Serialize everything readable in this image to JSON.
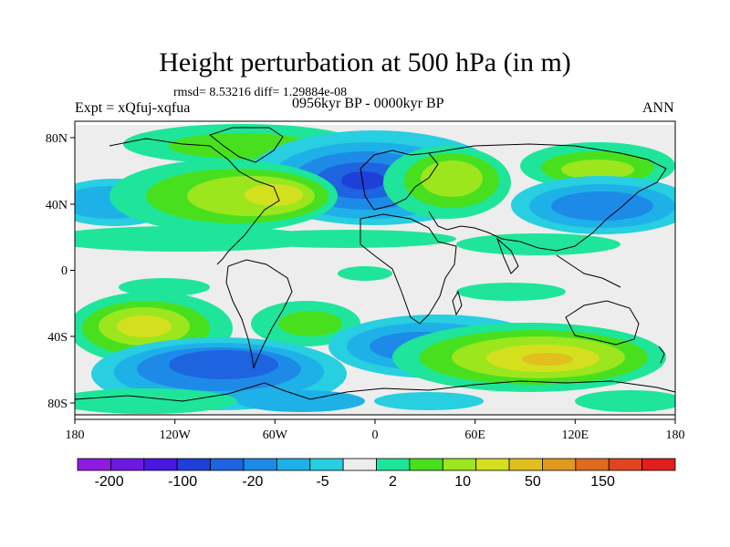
{
  "title": "Height perturbation at 500 hPa (in m)",
  "stats": "rmsd= 8.53216 diff= 1.29884e-08",
  "experiment": "Expt = xQfuj-xqfua",
  "period": "0956kyr BP - 0000kyr BP",
  "season": "ANN",
  "colors": {
    "palette": [
      "#8f1be0",
      "#6d19e0",
      "#4a17e0",
      "#1e40d8",
      "#1e63e0",
      "#1e8ae8",
      "#1eb1e8",
      "#27cfe0",
      "#ededed",
      "#1ee59a",
      "#48e01e",
      "#9ce61e",
      "#d4e01e",
      "#e0bf1e",
      "#e09a1e",
      "#e06b1e",
      "#e0431e",
      "#e01e1e"
    ]
  },
  "axes": {
    "x_ticks": [
      "180",
      "120W",
      "60W",
      "0",
      "60E",
      "120E",
      "180"
    ],
    "y_ticks": [
      "80N",
      "40N",
      "0",
      "40S",
      "80S"
    ]
  },
  "colorbar": {
    "labels": [
      "-200",
      "-100",
      "-20",
      "-5",
      "2",
      "10",
      "50",
      "150"
    ]
  }
}
